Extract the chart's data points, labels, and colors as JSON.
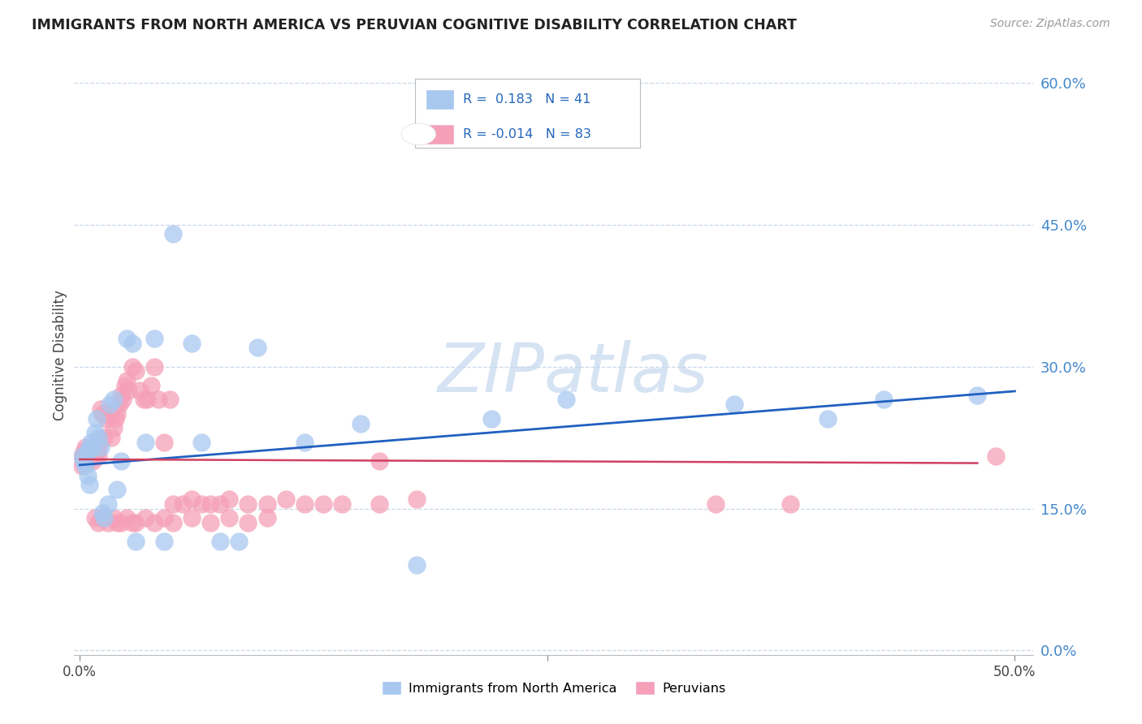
{
  "title": "IMMIGRANTS FROM NORTH AMERICA VS PERUVIAN COGNITIVE DISABILITY CORRELATION CHART",
  "source": "Source: ZipAtlas.com",
  "ylabel": "Cognitive Disability",
  "color_blue": "#A8C8F0",
  "color_pink": "#F5A0B8",
  "line_blue": "#2060C0",
  "line_pink": "#D04060",
  "watermark_color": "#C5D8EE",
  "grid_color": "#C8D8E8",
  "blue_x": [
    0.001,
    0.002,
    0.003,
    0.004,
    0.004,
    0.005,
    0.005,
    0.006,
    0.007,
    0.008,
    0.009,
    0.01,
    0.011,
    0.012,
    0.013,
    0.015,
    0.016,
    0.018,
    0.02,
    0.022,
    0.025,
    0.028,
    0.03,
    0.035,
    0.04,
    0.045,
    0.05,
    0.06,
    0.065,
    0.075,
    0.085,
    0.095,
    0.12,
    0.15,
    0.18,
    0.22,
    0.26,
    0.35,
    0.4,
    0.43,
    0.48
  ],
  "blue_y": [
    0.205,
    0.2,
    0.195,
    0.21,
    0.185,
    0.215,
    0.175,
    0.22,
    0.215,
    0.23,
    0.245,
    0.225,
    0.215,
    0.145,
    0.14,
    0.155,
    0.26,
    0.265,
    0.17,
    0.2,
    0.33,
    0.325,
    0.115,
    0.22,
    0.33,
    0.115,
    0.44,
    0.325,
    0.22,
    0.115,
    0.115,
    0.32,
    0.22,
    0.24,
    0.09,
    0.245,
    0.265,
    0.26,
    0.245,
    0.265,
    0.27
  ],
  "pink_x": [
    0.001,
    0.001,
    0.002,
    0.002,
    0.003,
    0.003,
    0.004,
    0.004,
    0.005,
    0.005,
    0.006,
    0.006,
    0.007,
    0.007,
    0.008,
    0.008,
    0.009,
    0.009,
    0.01,
    0.01,
    0.011,
    0.012,
    0.013,
    0.014,
    0.015,
    0.016,
    0.017,
    0.018,
    0.019,
    0.02,
    0.021,
    0.022,
    0.023,
    0.024,
    0.025,
    0.026,
    0.028,
    0.03,
    0.032,
    0.034,
    0.036,
    0.038,
    0.04,
    0.042,
    0.045,
    0.048,
    0.05,
    0.055,
    0.06,
    0.065,
    0.07,
    0.075,
    0.08,
    0.09,
    0.1,
    0.11,
    0.12,
    0.14,
    0.16,
    0.18,
    0.008,
    0.01,
    0.012,
    0.015,
    0.018,
    0.02,
    0.022,
    0.025,
    0.028,
    0.03,
    0.035,
    0.04,
    0.045,
    0.05,
    0.06,
    0.07,
    0.08,
    0.09,
    0.1,
    0.13,
    0.16,
    0.34,
    0.38,
    0.49
  ],
  "pink_y": [
    0.205,
    0.195,
    0.21,
    0.2,
    0.215,
    0.205,
    0.21,
    0.2,
    0.215,
    0.205,
    0.215,
    0.205,
    0.21,
    0.2,
    0.215,
    0.205,
    0.215,
    0.21,
    0.215,
    0.205,
    0.255,
    0.25,
    0.225,
    0.245,
    0.25,
    0.25,
    0.225,
    0.235,
    0.245,
    0.25,
    0.26,
    0.27,
    0.265,
    0.28,
    0.285,
    0.275,
    0.3,
    0.295,
    0.275,
    0.265,
    0.265,
    0.28,
    0.3,
    0.265,
    0.22,
    0.265,
    0.155,
    0.155,
    0.16,
    0.155,
    0.155,
    0.155,
    0.16,
    0.155,
    0.155,
    0.16,
    0.155,
    0.155,
    0.155,
    0.16,
    0.14,
    0.135,
    0.14,
    0.135,
    0.14,
    0.135,
    0.135,
    0.14,
    0.135,
    0.135,
    0.14,
    0.135,
    0.14,
    0.135,
    0.14,
    0.135,
    0.14,
    0.135,
    0.14,
    0.155,
    0.2,
    0.155,
    0.155,
    0.205
  ],
  "blue_line_x0": 0.0,
  "blue_line_x1": 0.5,
  "blue_line_y0": 0.196,
  "blue_line_y1": 0.274,
  "pink_line_x0": 0.0,
  "pink_line_x1": 0.48,
  "pink_line_y0": 0.202,
  "pink_line_y1": 0.198,
  "xlim_min": -0.003,
  "xlim_max": 0.51,
  "ylim_min": -0.005,
  "ylim_max": 0.63,
  "ytick_vals": [
    0.0,
    0.15,
    0.3,
    0.45,
    0.6
  ],
  "ytick_labels": [
    "0.0%",
    "15.0%",
    "30.0%",
    "45.0%",
    "60.0%"
  ],
  "xtick_vals": [
    0.0,
    0.5
  ],
  "xtick_labels": [
    "0.0%",
    "50.0%"
  ]
}
